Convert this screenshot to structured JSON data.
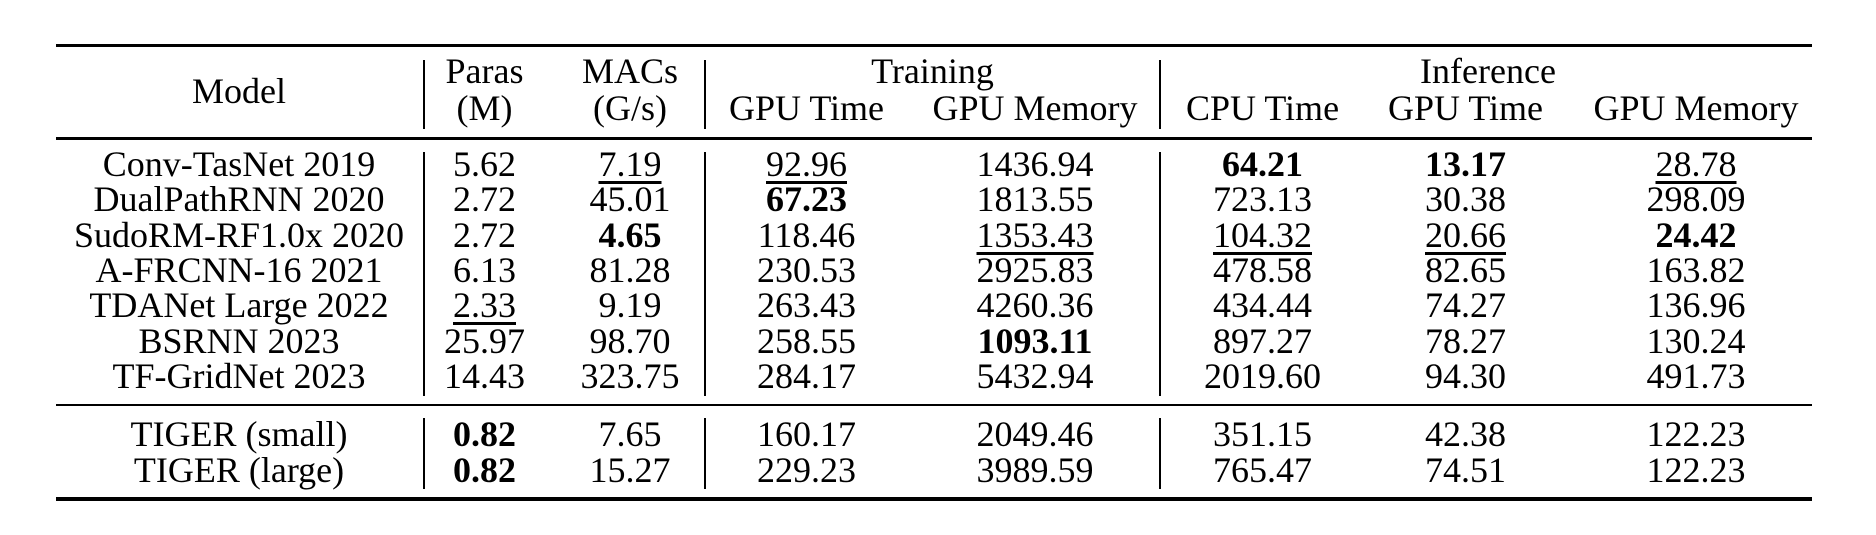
{
  "colors": {
    "text": "#000000",
    "background": "#ffffff",
    "rule": "#000000"
  },
  "table": {
    "header": {
      "model": "Model",
      "paras_line1": "Paras",
      "paras_line2": "(M)",
      "macs_line1": "MACs",
      "macs_line2": "(G/s)",
      "training_group": "Training",
      "training_cols": [
        "GPU Time",
        "GPU Memory"
      ],
      "inference_group": "Inference",
      "inference_cols": [
        "CPU Time",
        "GPU Time",
        "GPU Memory"
      ]
    },
    "rows": [
      {
        "model": "Conv-TasNet 2019",
        "cells": [
          {
            "text": "5.62",
            "style": "normal"
          },
          {
            "text": "7.19",
            "style": "underline"
          },
          {
            "text": "92.96",
            "style": "underline"
          },
          {
            "text": "1436.94",
            "style": "normal"
          },
          {
            "text": "64.21",
            "style": "bold"
          },
          {
            "text": "13.17",
            "style": "bold"
          },
          {
            "text": "28.78",
            "style": "underline"
          }
        ]
      },
      {
        "model": "DualPathRNN 2020",
        "cells": [
          {
            "text": "2.72",
            "style": "normal"
          },
          {
            "text": "45.01",
            "style": "normal"
          },
          {
            "text": "67.23",
            "style": "bold"
          },
          {
            "text": "1813.55",
            "style": "normal"
          },
          {
            "text": "723.13",
            "style": "normal"
          },
          {
            "text": "30.38",
            "style": "normal"
          },
          {
            "text": "298.09",
            "style": "normal"
          }
        ]
      },
      {
        "model": "SudoRM-RF1.0x 2020",
        "cells": [
          {
            "text": "2.72",
            "style": "normal"
          },
          {
            "text": "4.65",
            "style": "bold"
          },
          {
            "text": "118.46",
            "style": "normal"
          },
          {
            "text": "1353.43",
            "style": "underline"
          },
          {
            "text": "104.32",
            "style": "underline"
          },
          {
            "text": "20.66",
            "style": "underline"
          },
          {
            "text": "24.42",
            "style": "bold"
          }
        ]
      },
      {
        "model": "A-FRCNN-16 2021",
        "cells": [
          {
            "text": "6.13",
            "style": "normal"
          },
          {
            "text": "81.28",
            "style": "normal"
          },
          {
            "text": "230.53",
            "style": "normal"
          },
          {
            "text": "2925.83",
            "style": "normal"
          },
          {
            "text": "478.58",
            "style": "normal"
          },
          {
            "text": "82.65",
            "style": "normal"
          },
          {
            "text": "163.82",
            "style": "normal"
          }
        ]
      },
      {
        "model": "TDANet Large 2022",
        "cells": [
          {
            "text": "2.33",
            "style": "underline"
          },
          {
            "text": "9.19",
            "style": "normal"
          },
          {
            "text": "263.43",
            "style": "normal"
          },
          {
            "text": "4260.36",
            "style": "normal"
          },
          {
            "text": "434.44",
            "style": "normal"
          },
          {
            "text": "74.27",
            "style": "normal"
          },
          {
            "text": "136.96",
            "style": "normal"
          }
        ]
      },
      {
        "model": "BSRNN 2023",
        "cells": [
          {
            "text": "25.97",
            "style": "normal"
          },
          {
            "text": "98.70",
            "style": "normal"
          },
          {
            "text": "258.55",
            "style": "normal"
          },
          {
            "text": "1093.11",
            "style": "bold"
          },
          {
            "text": "897.27",
            "style": "normal"
          },
          {
            "text": "78.27",
            "style": "normal"
          },
          {
            "text": "130.24",
            "style": "normal"
          }
        ]
      },
      {
        "model": "TF-GridNet 2023",
        "cells": [
          {
            "text": "14.43",
            "style": "normal"
          },
          {
            "text": "323.75",
            "style": "normal"
          },
          {
            "text": "284.17",
            "style": "normal"
          },
          {
            "text": "5432.94",
            "style": "normal"
          },
          {
            "text": "2019.60",
            "style": "normal"
          },
          {
            "text": "94.30",
            "style": "normal"
          },
          {
            "text": "491.73",
            "style": "normal"
          }
        ]
      }
    ],
    "tiger_rows": [
      {
        "model": "TIGER (small)",
        "cells": [
          {
            "text": "0.82",
            "style": "bold"
          },
          {
            "text": "7.65",
            "style": "normal"
          },
          {
            "text": "160.17",
            "style": "normal"
          },
          {
            "text": "2049.46",
            "style": "normal"
          },
          {
            "text": "351.15",
            "style": "normal"
          },
          {
            "text": "42.38",
            "style": "normal"
          },
          {
            "text": "122.23",
            "style": "normal"
          }
        ]
      },
      {
        "model": "TIGER (large)",
        "cells": [
          {
            "text": "0.82",
            "style": "bold"
          },
          {
            "text": "15.27",
            "style": "normal"
          },
          {
            "text": "229.23",
            "style": "normal"
          },
          {
            "text": "3989.59",
            "style": "normal"
          },
          {
            "text": "765.47",
            "style": "normal"
          },
          {
            "text": "74.51",
            "style": "normal"
          },
          {
            "text": "122.23",
            "style": "normal"
          }
        ]
      }
    ]
  }
}
